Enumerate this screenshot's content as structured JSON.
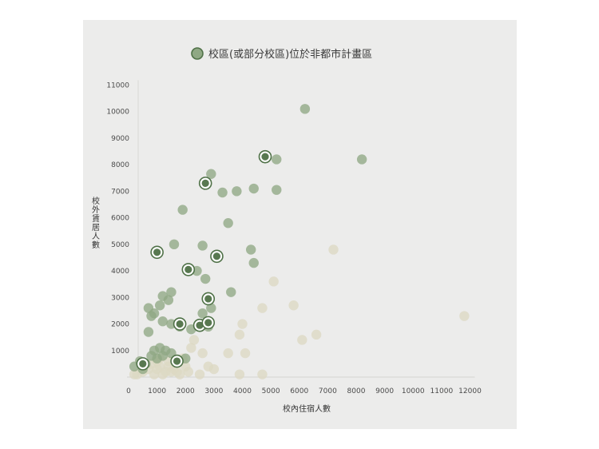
{
  "chart_data": {
    "type": "scatter",
    "title": "",
    "xlabel": "校內住宿人數",
    "ylabel": "校外賃居人數",
    "xlim": [
      0,
      12000
    ],
    "ylim": [
      0,
      11000
    ],
    "x_ticks": [
      0,
      1000,
      2000,
      3000,
      4000,
      5000,
      6000,
      7000,
      8000,
      9000,
      10000,
      11000,
      12000
    ],
    "y_ticks": [
      1000,
      2000,
      3000,
      4000,
      5000,
      6000,
      7000,
      8000,
      9000,
      10000,
      11000
    ],
    "grid": false,
    "legend_position": "top",
    "legend": [
      {
        "label": "校區(或部分校區)位於非都市計畫區",
        "color": "#8fa884"
      }
    ],
    "colors": {
      "green": "#8fa884",
      "beige": "#ddd9c3",
      "highlight": "#4f7147",
      "panel": "#ececeb"
    },
    "series": [
      {
        "name": "",
        "color": "#8fa884",
        "points": [
          [
            6200,
            10100
          ],
          [
            8200,
            8200
          ],
          [
            5200,
            8200
          ],
          [
            2900,
            7650
          ],
          [
            3300,
            6950
          ],
          [
            3800,
            7000
          ],
          [
            4400,
            7100
          ],
          [
            5200,
            7050
          ],
          [
            1900,
            6300
          ],
          [
            3500,
            5800
          ],
          [
            1600,
            5000
          ],
          [
            2600,
            4950
          ],
          [
            4300,
            4800
          ],
          [
            4400,
            4300
          ],
          [
            2400,
            4000
          ],
          [
            2700,
            3700
          ],
          [
            3600,
            3200
          ],
          [
            1500,
            3200
          ],
          [
            1200,
            3050
          ],
          [
            1400,
            2900
          ],
          [
            1100,
            2700
          ],
          [
            700,
            2600
          ],
          [
            900,
            2400
          ],
          [
            800,
            2300
          ],
          [
            1200,
            2100
          ],
          [
            2600,
            2400
          ],
          [
            2900,
            2600
          ],
          [
            1800,
            1900
          ],
          [
            1500,
            2000
          ],
          [
            2200,
            1800
          ],
          [
            2800,
            1900
          ],
          [
            700,
            1700
          ],
          [
            1100,
            1100
          ],
          [
            1300,
            1000
          ],
          [
            800,
            800
          ],
          [
            1000,
            700
          ],
          [
            400,
            600
          ],
          [
            200,
            400
          ],
          [
            500,
            300
          ],
          [
            1700,
            600
          ],
          [
            1200,
            800
          ],
          [
            900,
            1000
          ],
          [
            600,
            500
          ],
          [
            1500,
            900
          ],
          [
            2000,
            700
          ]
        ]
      },
      {
        "name": "",
        "color": "#ddd9c3",
        "points": [
          [
            11800,
            2300
          ],
          [
            7200,
            4800
          ],
          [
            6600,
            1600
          ],
          [
            6100,
            1400
          ],
          [
            5800,
            2700
          ],
          [
            5100,
            3600
          ],
          [
            4700,
            2600
          ],
          [
            4000,
            2000
          ],
          [
            4100,
            900
          ],
          [
            3900,
            1600
          ],
          [
            3500,
            900
          ],
          [
            2800,
            400
          ],
          [
            3000,
            300
          ],
          [
            2600,
            900
          ],
          [
            2200,
            1100
          ],
          [
            2300,
            1400
          ],
          [
            1900,
            700
          ],
          [
            2100,
            200
          ],
          [
            1600,
            300
          ],
          [
            1300,
            200
          ],
          [
            1100,
            400
          ],
          [
            1000,
            300
          ],
          [
            900,
            100
          ],
          [
            1400,
            600
          ],
          [
            1800,
            100
          ],
          [
            2500,
            100
          ],
          [
            3900,
            100
          ],
          [
            4700,
            100
          ],
          [
            1000,
            600
          ],
          [
            1200,
            100
          ],
          [
            1500,
            200
          ],
          [
            700,
            300
          ],
          [
            500,
            200
          ],
          [
            300,
            100
          ],
          [
            200,
            100
          ],
          [
            800,
            500
          ],
          [
            1100,
            700
          ],
          [
            1400,
            400
          ],
          [
            1700,
            200
          ],
          [
            2000,
            400
          ]
        ]
      },
      {
        "name": "",
        "color": "#4f7147",
        "highlight": true,
        "points": [
          [
            4800,
            8300
          ],
          [
            2700,
            7300
          ],
          [
            1000,
            4700
          ],
          [
            3100,
            4550
          ],
          [
            2100,
            4050
          ],
          [
            2800,
            2950
          ],
          [
            1800,
            2000
          ],
          [
            2500,
            1950
          ],
          [
            2800,
            2050
          ],
          [
            1700,
            600
          ],
          [
            500,
            500
          ]
        ]
      }
    ]
  }
}
